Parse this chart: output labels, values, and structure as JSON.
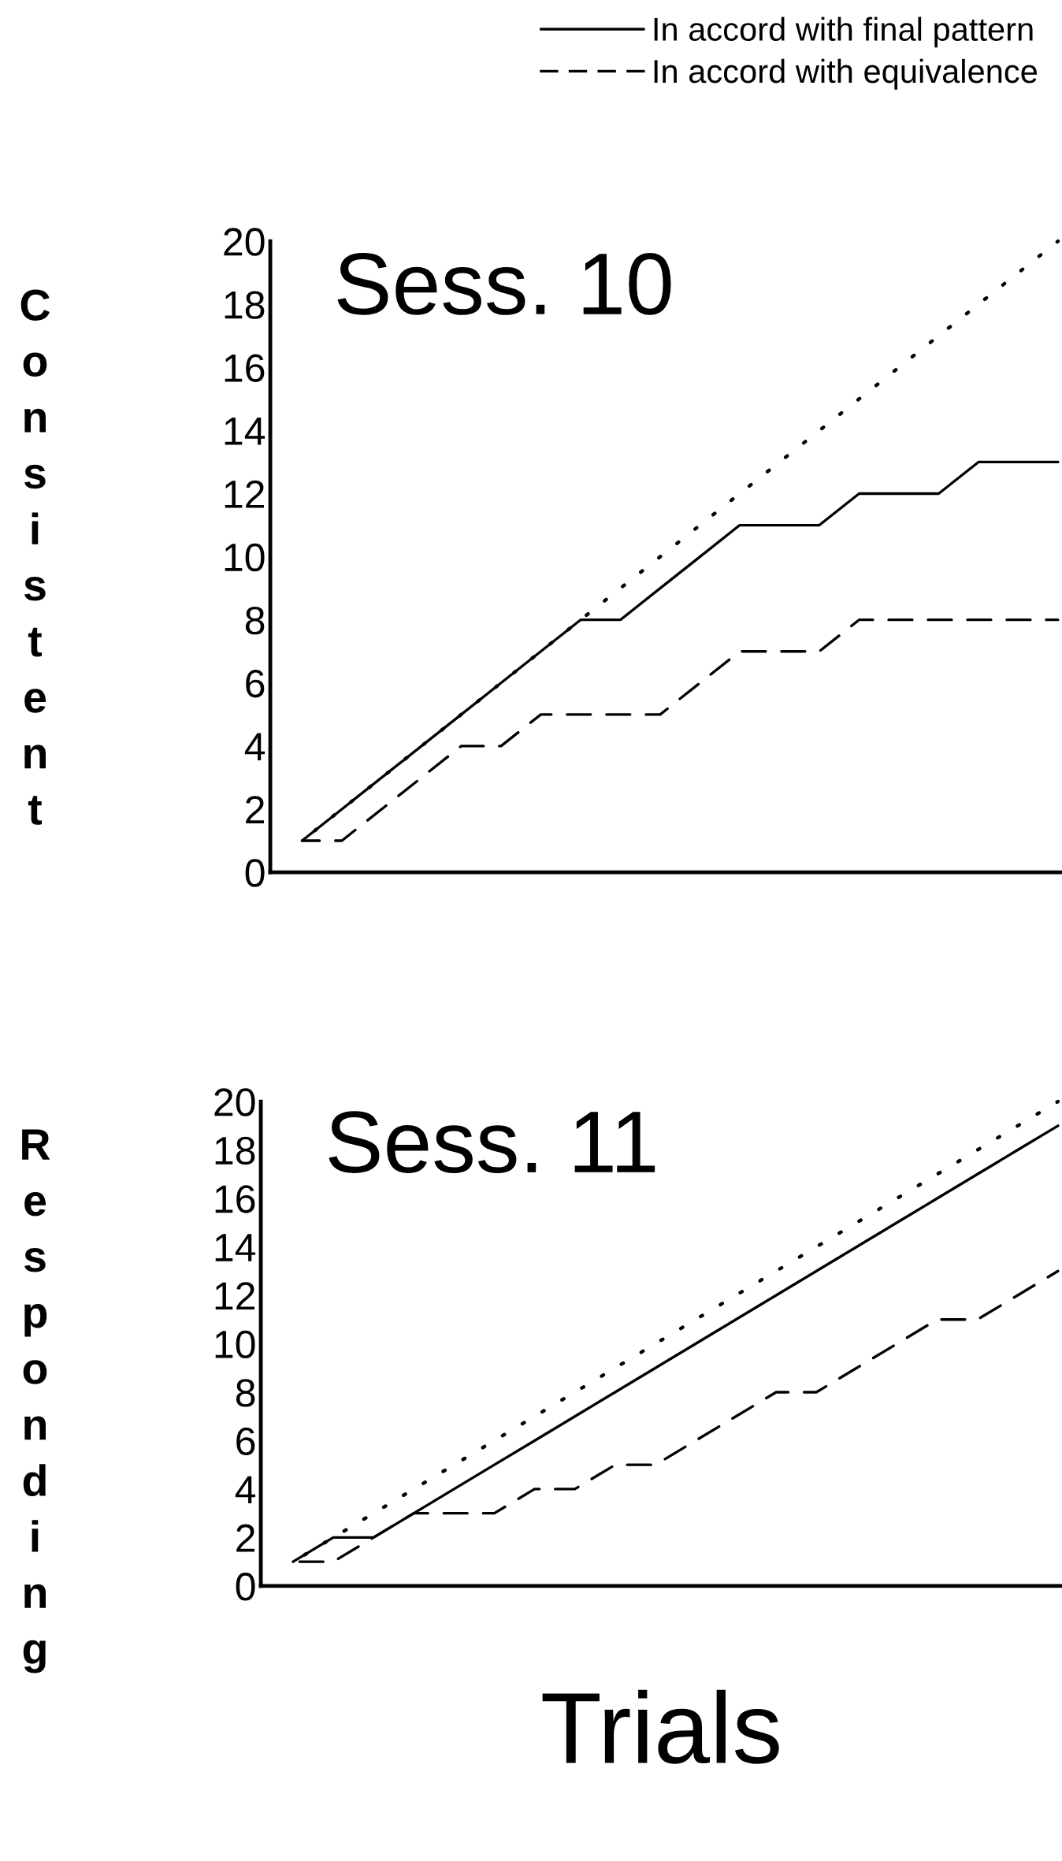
{
  "chart_data": [
    {
      "type": "line",
      "title": "Sess. 10",
      "ylabel": "Consistent",
      "legend": "top right",
      "tick_labels": "y",
      "categories": [
        null,
        null,
        null,
        null,
        null,
        null,
        null,
        null,
        null,
        null,
        null,
        null,
        null,
        null,
        null,
        null,
        null,
        null,
        null,
        null
      ],
      "ylim": [
        0,
        20
      ],
      "yticks": [
        0,
        2,
        4,
        6,
        8,
        10,
        12,
        14,
        16,
        18,
        20
      ],
      "series": [
        {
          "name": "In accord with final pattern",
          "color": "#000000",
          "line_style": "solid",
          "values": [
            1,
            2,
            3,
            4,
            5,
            6,
            7,
            8,
            8,
            9,
            10,
            11,
            11,
            11,
            12,
            12,
            12,
            13,
            13,
            13
          ]
        },
        {
          "name": "In accord with equivalence",
          "color": "#000000",
          "line_style": "dashed",
          "values": [
            1,
            1,
            2,
            3,
            4,
            4,
            5,
            5,
            5,
            5,
            6,
            7,
            7,
            7,
            8,
            8,
            8,
            8,
            8,
            8
          ]
        },
        {
          "color": "#000000",
          "line_style": "dotted",
          "values": [
            1,
            2,
            3,
            4,
            5,
            6,
            7,
            8,
            9,
            10,
            11,
            12,
            13,
            14,
            15,
            16,
            17,
            18,
            19,
            20
          ]
        }
      ]
    },
    {
      "type": "line",
      "title": "Sess. 11",
      "ylabel": "Responding",
      "xlabel": "Trials",
      "tick_labels": "y",
      "categories": [
        null,
        null,
        null,
        null,
        null,
        null,
        null,
        null,
        null,
        null,
        null,
        null,
        null,
        null,
        null,
        null,
        null,
        null,
        null,
        null
      ],
      "ylim": [
        0,
        20
      ],
      "yticks": [
        0,
        2,
        4,
        6,
        8,
        10,
        12,
        14,
        16,
        18,
        20
      ],
      "series": [
        {
          "color": "#000000",
          "line_style": "solid",
          "values": [
            1,
            2,
            2,
            3,
            4,
            5,
            6,
            7,
            8,
            9,
            10,
            11,
            12,
            13,
            14,
            15,
            16,
            17,
            18,
            19
          ]
        },
        {
          "color": "#000000",
          "line_style": "dashed",
          "values": [
            1,
            1,
            2,
            3,
            3,
            3,
            4,
            4,
            5,
            5,
            6,
            7,
            8,
            8,
            9,
            10,
            11,
            11,
            12,
            13
          ]
        },
        {
          "color": "#000000",
          "line_style": "dotted",
          "values": [
            1,
            2,
            3,
            4,
            5,
            6,
            7,
            8,
            9,
            10,
            11,
            12,
            13,
            14,
            15,
            16,
            17,
            18,
            19,
            20
          ]
        }
      ]
    }
  ]
}
